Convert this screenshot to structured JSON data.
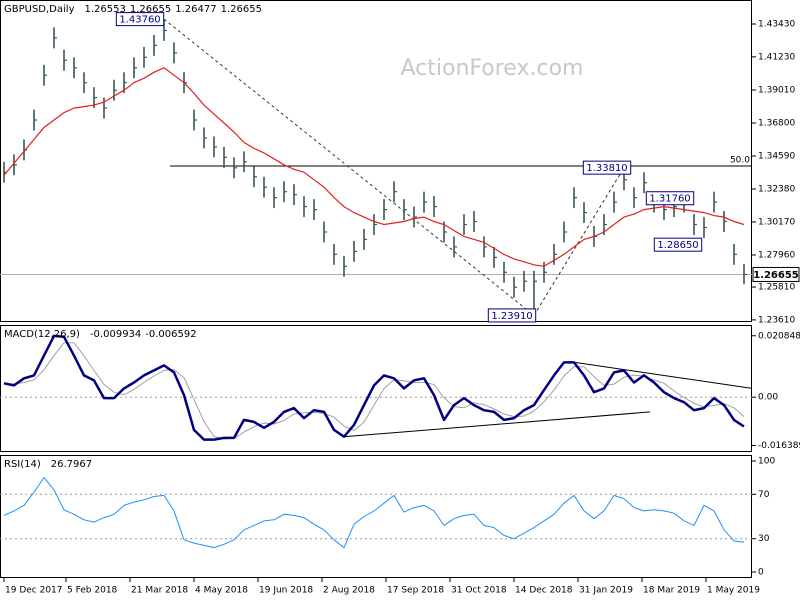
{
  "chart_data": [
    {
      "type": "ohlc",
      "title": "GBPUSD,Daily",
      "quote": [
        1.26553,
        1.26655,
        1.26477,
        1.26655
      ],
      "watermark": "ActionForex.com",
      "xlim": [
        -0.4,
        74.8
      ],
      "ylim": [
        1.2347,
        1.4504
      ],
      "yticks": [
        {
          "value": 1.4343,
          "label": "1.43430"
        },
        {
          "value": 1.4123,
          "label": "1.41230"
        },
        {
          "value": 1.3901,
          "label": "1.39010"
        },
        {
          "value": 1.368,
          "label": "1.36800"
        },
        {
          "value": 1.3459,
          "label": "1.34590"
        },
        {
          "value": 1.3238,
          "label": "1.32380"
        },
        {
          "value": 1.3017,
          "label": "1.30170"
        },
        {
          "value": 1.2796,
          "label": "1.27960"
        },
        {
          "value": 1.2581,
          "label": "1.25810"
        },
        {
          "value": 1.2361,
          "label": "1.23610"
        }
      ],
      "color": "#3b5757",
      "high": [
        1.342,
        1.347,
        1.357,
        1.377,
        1.407,
        1.432,
        1.417,
        1.412,
        1.402,
        1.392,
        1.385,
        1.397,
        1.402,
        1.412,
        1.419,
        1.427,
        1.4376,
        1.422,
        1.402,
        1.377,
        1.365,
        1.359,
        1.352,
        1.345,
        1.349,
        1.339,
        1.332,
        1.325,
        1.329,
        1.327,
        1.319,
        1.317,
        1.302,
        1.287,
        1.279,
        1.289,
        1.297,
        1.307,
        1.317,
        1.329,
        1.317,
        1.312,
        1.322,
        1.319,
        1.302,
        1.292,
        1.307,
        1.309,
        1.292,
        1.285,
        1.275,
        1.265,
        1.269,
        1.269,
        1.275,
        1.287,
        1.302,
        1.325,
        1.315,
        1.299,
        1.307,
        1.322,
        1.3381,
        1.325,
        1.335,
        1.322,
        1.317,
        1.319,
        1.322,
        1.307,
        1.305,
        1.322,
        1.309,
        1.287,
        1.2735
      ],
      "low": [
        1.328,
        1.333,
        1.343,
        1.363,
        1.393,
        1.418,
        1.403,
        1.398,
        1.388,
        1.378,
        1.371,
        1.383,
        1.388,
        1.398,
        1.405,
        1.413,
        1.423,
        1.408,
        1.388,
        1.363,
        1.351,
        1.345,
        1.338,
        1.331,
        1.335,
        1.325,
        1.318,
        1.311,
        1.315,
        1.313,
        1.305,
        1.303,
        1.288,
        1.273,
        1.265,
        1.275,
        1.283,
        1.293,
        1.303,
        1.315,
        1.303,
        1.298,
        1.308,
        1.305,
        1.288,
        1.278,
        1.293,
        1.295,
        1.278,
        1.271,
        1.261,
        1.251,
        1.255,
        1.2391,
        1.261,
        1.273,
        1.288,
        1.311,
        1.301,
        1.285,
        1.293,
        1.308,
        1.323,
        1.311,
        1.321,
        1.308,
        1.303,
        1.305,
        1.308,
        1.293,
        1.291,
        1.308,
        1.295,
        1.273,
        1.26
      ],
      "close": [
        1.335,
        1.34,
        1.35,
        1.37,
        1.4,
        1.425,
        1.41,
        1.405,
        1.395,
        1.385,
        1.378,
        1.39,
        1.395,
        1.405,
        1.412,
        1.42,
        1.43,
        1.415,
        1.395,
        1.37,
        1.358,
        1.352,
        1.345,
        1.338,
        1.342,
        1.332,
        1.325,
        1.318,
        1.322,
        1.32,
        1.312,
        1.31,
        1.295,
        1.28,
        1.272,
        1.282,
        1.29,
        1.3,
        1.31,
        1.322,
        1.31,
        1.305,
        1.315,
        1.312,
        1.295,
        1.285,
        1.3,
        1.302,
        1.285,
        1.278,
        1.268,
        1.258,
        1.262,
        1.262,
        1.268,
        1.28,
        1.295,
        1.318,
        1.308,
        1.292,
        1.3,
        1.315,
        1.33,
        1.318,
        1.328,
        1.315,
        1.31,
        1.312,
        1.315,
        1.3,
        1.298,
        1.315,
        1.302,
        1.28,
        1.26655
      ],
      "ma": {
        "color": "#e02020",
        "values": [
          1.333,
          1.341,
          1.349,
          1.357,
          1.365,
          1.37,
          1.375,
          1.378,
          1.379,
          1.38,
          1.382,
          1.386,
          1.39,
          1.395,
          1.398,
          1.402,
          1.405,
          1.4,
          1.395,
          1.388,
          1.38,
          1.374,
          1.368,
          1.362,
          1.355,
          1.351,
          1.348,
          1.344,
          1.34,
          1.337,
          1.335,
          1.33,
          1.325,
          1.318,
          1.312,
          1.308,
          1.305,
          1.302,
          1.3,
          1.301,
          1.302,
          1.304,
          1.305,
          1.302,
          1.3,
          1.296,
          1.292,
          1.29,
          1.288,
          1.284,
          1.28,
          1.277,
          1.275,
          1.273,
          1.272,
          1.276,
          1.28,
          1.285,
          1.29,
          1.292,
          1.295,
          1.3,
          1.305,
          1.307,
          1.31,
          1.311,
          1.312,
          1.311,
          1.31,
          1.309,
          1.308,
          1.306,
          1.305,
          1.302,
          1.3
        ]
      },
      "annotations": [
        {
          "label": "1.43760",
          "value": 1.4376,
          "x": 16
        },
        {
          "label": "1.23910",
          "value": 1.2391,
          "x": 53
        },
        {
          "label": "1.33810",
          "value": 1.3381,
          "x": 62
        },
        {
          "label": "1.31760",
          "value": 1.3176,
          "x": 67
        },
        {
          "label": "1.28650",
          "value": 1.2865,
          "x": 70
        }
      ],
      "trendlines": [
        {
          "x": [
            16,
            53
          ],
          "y": [
            1.4376,
            1.2391
          ]
        },
        {
          "x": [
            53,
            62
          ],
          "y": [
            1.2391,
            1.3381
          ]
        }
      ],
      "fib": {
        "value": 1.3392,
        "label": "50.0",
        "x": 16.6
      },
      "last_price": 1.26655
    },
    {
      "type": "line",
      "title": "MACD(12,26,9)",
      "readout": [
        -0.009934,
        -0.006592
      ],
      "xlim": [
        -0.4,
        74.8
      ],
      "ylim": [
        -0.0186,
        0.0245
      ],
      "yticks": [
        0.020848,
        {
          "value": 0,
          "label": "0.00"
        },
        -0.016389
      ],
      "levels": [
        0
      ],
      "series": [
        {
          "color": "#a0a0a0",
          "width": 1,
          "values": [
            0.0045,
            0.0045,
            0.005,
            0.0059,
            0.0093,
            0.0141,
            0.0185,
            0.0185,
            0.014,
            0.0091,
            0.0043,
            0.0017,
            0.0008,
            0.0026,
            0.0051,
            0.0072,
            0.0091,
            0.0094,
            0.0066,
            -0.0007,
            -0.0083,
            -0.0133,
            -0.0142,
            -0.014,
            -0.0118,
            -0.01,
            -0.0088,
            -0.0091,
            -0.0079,
            -0.0057,
            -0.0053,
            -0.0051,
            -0.0055,
            -0.0068,
            -0.0098,
            -0.0113,
            -0.0085,
            -0.0027,
            0.0029,
            0.0059,
            0.0056,
            0.005,
            0.005,
            0.0043,
            -0.0002,
            -0.0032,
            -0.0036,
            -0.0019,
            -0.0025,
            -0.004,
            -0.0057,
            -0.0066,
            -0.0064,
            -0.0047,
            -0.0016,
            0.0024,
            0.0072,
            0.0103,
            0.0103,
            0.007,
            0.004,
            0.0044,
            0.0068,
            0.0075,
            0.0072,
            0.0058,
            0.0047,
            0.0021,
            -0.0001,
            -0.0021,
            -0.0033,
            -0.0028,
            -0.0022,
            -0.0036,
            -0.006592
          ]
        },
        {
          "color": "#000080",
          "width": 2.5,
          "values": [
            0.0047,
            0.004,
            0.0064,
            0.0074,
            0.0141,
            0.0208,
            0.0205,
            0.0141,
            0.0074,
            0.0057,
            -0.0003,
            -0.0003,
            0.003,
            0.005,
            0.0074,
            0.0091,
            0.0108,
            0.0084,
            0.0007,
            -0.0111,
            -0.0144,
            -0.0144,
            -0.0138,
            -0.0138,
            -0.0077,
            -0.0084,
            -0.0104,
            -0.0084,
            -0.005,
            -0.0037,
            -0.0071,
            -0.0044,
            -0.005,
            -0.0111,
            -0.0134,
            -0.0094,
            -0.0027,
            0.004,
            0.0074,
            0.0064,
            0.003,
            0.0057,
            0.0064,
            0.0007,
            -0.0077,
            -0.0027,
            -0.0003,
            -0.0027,
            -0.0044,
            -0.005,
            -0.0077,
            -0.0071,
            -0.0044,
            -0.0027,
            0.0024,
            0.0074,
            0.0118,
            0.0118,
            0.0074,
            0.0017,
            0.003,
            0.0084,
            0.0091,
            0.005,
            0.0074,
            0.005,
            0.0017,
            -0.0003,
            -0.0017,
            -0.0044,
            -0.0037,
            -0.0003,
            -0.0027,
            -0.0077,
            -0.009934
          ]
        }
      ],
      "trendlines": [
        {
          "x": [
            57.1,
            74.8
          ],
          "y": [
            0.0118,
            0.003
          ]
        },
        {
          "x": [
            34.1,
            64.6
          ],
          "y": [
            -0.0134,
            -0.005
          ]
        }
      ]
    },
    {
      "type": "line",
      "title": "RSI(14)",
      "readout": [
        26.7967
      ],
      "xlim": [
        -0.4,
        74.8
      ],
      "ylim": [
        -5.4,
        105.4
      ],
      "yticks": [
        100,
        70,
        30,
        0
      ],
      "levels": [
        70,
        30
      ],
      "series": [
        {
          "color": "#1e90ff",
          "width": 1,
          "values": [
            51,
            55,
            60,
            72,
            85,
            74,
            56,
            52,
            47,
            45,
            49,
            52,
            60,
            63,
            65,
            68,
            69,
            55,
            29,
            26,
            24,
            22,
            25,
            29,
            38,
            42,
            46,
            47,
            52,
            51,
            49,
            43,
            38,
            29,
            22,
            43,
            50,
            55,
            62,
            69,
            54,
            58,
            60,
            55,
            42,
            48,
            51,
            52,
            42,
            40,
            33,
            30,
            35,
            40,
            46,
            52,
            62,
            69,
            55,
            48,
            55,
            69,
            66,
            58,
            55,
            56,
            55,
            53,
            46,
            42,
            60,
            55,
            38,
            28,
            26.7967
          ]
        }
      ],
      "xticks": [
        {
          "value": 0,
          "label": "19 Dec 2017"
        },
        {
          "value": 6.2,
          "label": "5 Feb 2018"
        },
        {
          "value": 12.6,
          "label": "21 Mar 2018"
        },
        {
          "value": 19,
          "label": "4 May 2018"
        },
        {
          "value": 25.4,
          "label": "19 Jun 2018"
        },
        {
          "value": 31.8,
          "label": "2 Aug 2018"
        },
        {
          "value": 38.2,
          "label": "17 Sep 2018"
        },
        {
          "value": 44.6,
          "label": "31 Oct 2018"
        },
        {
          "value": 51,
          "label": "14 Dec 2018"
        },
        {
          "value": 57.4,
          "label": "31 Jan 2019"
        },
        {
          "value": 63.8,
          "label": "18 Mar 2019"
        },
        {
          "value": 70.2,
          "label": "1 May 2019"
        }
      ]
    }
  ]
}
